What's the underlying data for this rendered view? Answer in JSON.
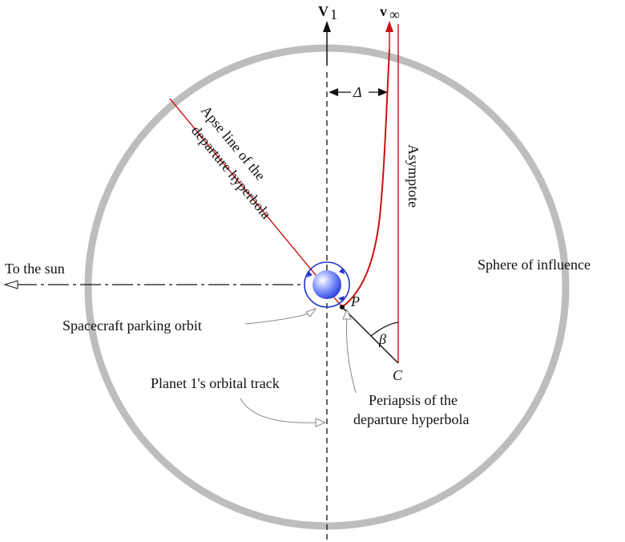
{
  "labels": {
    "v1_main": "V",
    "v1_sub": "1",
    "vinf_main": "v",
    "vinf_sub": "∞",
    "delta": "Δ",
    "asymptote": "Asymptote",
    "apse_line_1": "Apse line of the",
    "apse_line_2": "departure hyperbola",
    "to_sun": "To the sun",
    "sphere": "Sphere of influence",
    "parking_orbit": "Spacecraft parking orbit",
    "orbital_track": "Planet 1's orbital track",
    "periapsis_1": "Periapsis of the",
    "periapsis_2": "departure hyperbola",
    "point_p": "P",
    "point_c": "C",
    "beta": "β"
  },
  "colors": {
    "hyperbola": "#cc1111",
    "sphere": "#bdbdbd",
    "planet": "#3344dd",
    "orbit": "#2233cc",
    "line": "#111111"
  }
}
